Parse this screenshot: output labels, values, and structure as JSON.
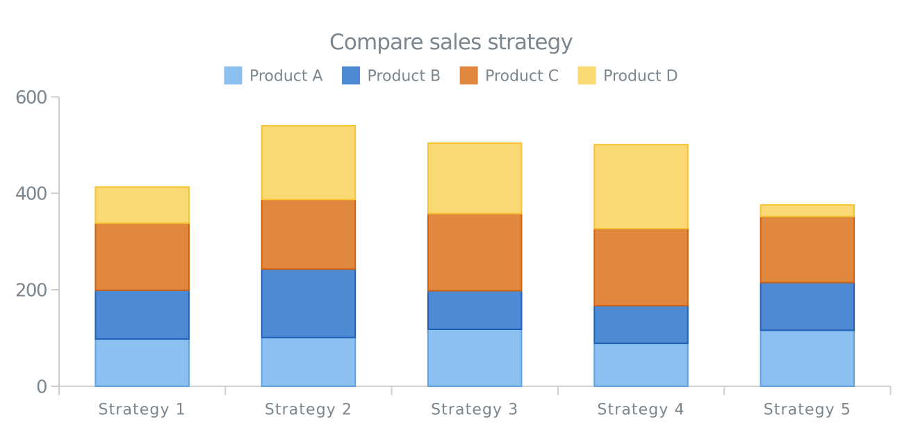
{
  "chart_data": {
    "type": "bar",
    "stacked": true,
    "title": "Compare sales strategy",
    "categories": [
      "Strategy 1",
      "Strategy 2",
      "Strategy 3",
      "Strategy 4",
      "Strategy 5"
    ],
    "series": [
      {
        "name": "Product A",
        "values": [
          98,
          101,
          118,
          89,
          116
        ],
        "fill": "#8cc0f0",
        "stroke": "#5fa1e2"
      },
      {
        "name": "Product B",
        "values": [
          101,
          142,
          80,
          78,
          99
        ],
        "fill": "#4e8ad3",
        "stroke": "#1f60b7"
      },
      {
        "name": "Product C",
        "values": [
          139,
          144,
          160,
          160,
          137
        ],
        "fill": "#e0883d",
        "stroke": "#d2600e"
      },
      {
        "name": "Product D",
        "values": [
          75,
          153,
          146,
          174,
          24
        ],
        "fill": "#fad974",
        "stroke": "#f5c333"
      }
    ],
    "xlabel": "",
    "ylabel": "",
    "y_axis": {
      "min": 0,
      "max": 600,
      "ticks": [
        0,
        200,
        400,
        600
      ]
    },
    "legend_position": "top",
    "grid": false,
    "colors": {
      "axis_line": "#cecece",
      "text": "#7c868e",
      "background": "#ffffff"
    }
  }
}
